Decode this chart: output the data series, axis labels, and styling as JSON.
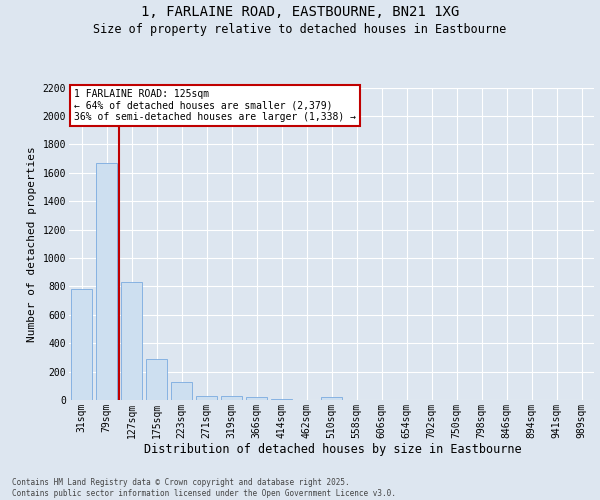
{
  "title_line1": "1, FARLAINE ROAD, EASTBOURNE, BN21 1XG",
  "title_line2": "Size of property relative to detached houses in Eastbourne",
  "xlabel": "Distribution of detached houses by size in Eastbourne",
  "ylabel": "Number of detached properties",
  "categories": [
    "31sqm",
    "79sqm",
    "127sqm",
    "175sqm",
    "223sqm",
    "271sqm",
    "319sqm",
    "366sqm",
    "414sqm",
    "462sqm",
    "510sqm",
    "558sqm",
    "606sqm",
    "654sqm",
    "702sqm",
    "750sqm",
    "798sqm",
    "846sqm",
    "894sqm",
    "941sqm",
    "989sqm"
  ],
  "values": [
    780,
    1670,
    830,
    290,
    130,
    30,
    25,
    20,
    5,
    0,
    20,
    0,
    0,
    0,
    0,
    0,
    0,
    0,
    0,
    0,
    0
  ],
  "bar_color": "#cddff0",
  "bar_edge_color": "#7aabe0",
  "background_color": "#dde6f0",
  "grid_color": "#ffffff",
  "vline_color": "#c00000",
  "vline_position": 1.5,
  "annotation_title": "1 FARLAINE ROAD: 125sqm",
  "annotation_line2": "← 64% of detached houses are smaller (2,379)",
  "annotation_line3": "36% of semi-detached houses are larger (1,338) →",
  "annotation_box_edge_color": "#c00000",
  "annotation_fill": "#ffffff",
  "ylim_max": 2200,
  "yticks": [
    0,
    200,
    400,
    600,
    800,
    1000,
    1200,
    1400,
    1600,
    1800,
    2000,
    2200
  ],
  "title_fontsize": 10,
  "subtitle_fontsize": 8.5,
  "ylabel_fontsize": 8,
  "xlabel_fontsize": 8.5,
  "tick_fontsize": 7,
  "ann_fontsize": 7,
  "footnote_line1": "Contains HM Land Registry data © Crown copyright and database right 2025.",
  "footnote_line2": "Contains public sector information licensed under the Open Government Licence v3.0.",
  "footnote_fontsize": 5.5
}
